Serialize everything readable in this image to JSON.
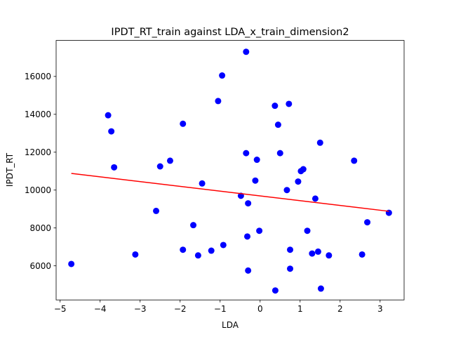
{
  "chart_data": {
    "type": "scatter",
    "title": "IPDT_RT_train against LDA_x_train_dimension2",
    "xlabel": "LDA",
    "ylabel": "IPDT_RT",
    "xlim": [
      -5.1,
      3.6
    ],
    "ylim": [
      4200,
      17900
    ],
    "grid": false,
    "legend": "none",
    "x_ticks": [
      -5,
      -4,
      -3,
      -2,
      -1,
      0,
      1,
      2,
      3
    ],
    "y_ticks": [
      6000,
      8000,
      10000,
      12000,
      14000,
      16000
    ],
    "x_tick_labels": [
      "−5",
      "−4",
      "−3",
      "−2",
      "−1",
      "0",
      "1",
      "2",
      "3"
    ],
    "y_tick_labels": [
      "6000",
      "8000",
      "10000",
      "12000",
      "14000",
      "16000"
    ],
    "series": [
      {
        "type": "scatter",
        "color": "#0000ff",
        "points": [
          [
            -4.72,
            6100
          ],
          [
            -3.8,
            13950
          ],
          [
            -3.72,
            13100
          ],
          [
            -3.65,
            11200
          ],
          [
            -3.12,
            6600
          ],
          [
            -2.6,
            8900
          ],
          [
            -2.5,
            11250
          ],
          [
            -2.25,
            11550
          ],
          [
            -1.93,
            13500
          ],
          [
            -1.93,
            6850
          ],
          [
            -1.67,
            8150
          ],
          [
            -1.55,
            6550
          ],
          [
            -1.45,
            10350
          ],
          [
            -1.22,
            6800
          ],
          [
            -1.05,
            14700
          ],
          [
            -0.95,
            16050
          ],
          [
            -0.92,
            7100
          ],
          [
            -0.48,
            9700
          ],
          [
            -0.35,
            17300
          ],
          [
            -0.35,
            11950
          ],
          [
            -0.32,
            7550
          ],
          [
            -0.3,
            9300
          ],
          [
            -0.3,
            5750
          ],
          [
            -0.12,
            10500
          ],
          [
            -0.08,
            11600
          ],
          [
            -0.02,
            7850
          ],
          [
            0.37,
            14450
          ],
          [
            0.38,
            4700
          ],
          [
            0.45,
            13450
          ],
          [
            0.5,
            11950
          ],
          [
            0.67,
            10000
          ],
          [
            0.72,
            14550
          ],
          [
            0.75,
            6850
          ],
          [
            0.75,
            5850
          ],
          [
            0.95,
            10450
          ],
          [
            1.02,
            11000
          ],
          [
            1.08,
            11100
          ],
          [
            1.18,
            7850
          ],
          [
            1.3,
            6650
          ],
          [
            1.38,
            9550
          ],
          [
            1.45,
            6750
          ],
          [
            1.5,
            12500
          ],
          [
            1.52,
            4800
          ],
          [
            1.72,
            6550
          ],
          [
            2.35,
            11550
          ],
          [
            2.55,
            6600
          ],
          [
            2.68,
            8300
          ],
          [
            3.22,
            8800
          ]
        ]
      },
      {
        "type": "line",
        "color": "#ff0000",
        "x": [
          -4.72,
          3.22
        ],
        "y": [
          10880,
          8880
        ]
      }
    ]
  }
}
